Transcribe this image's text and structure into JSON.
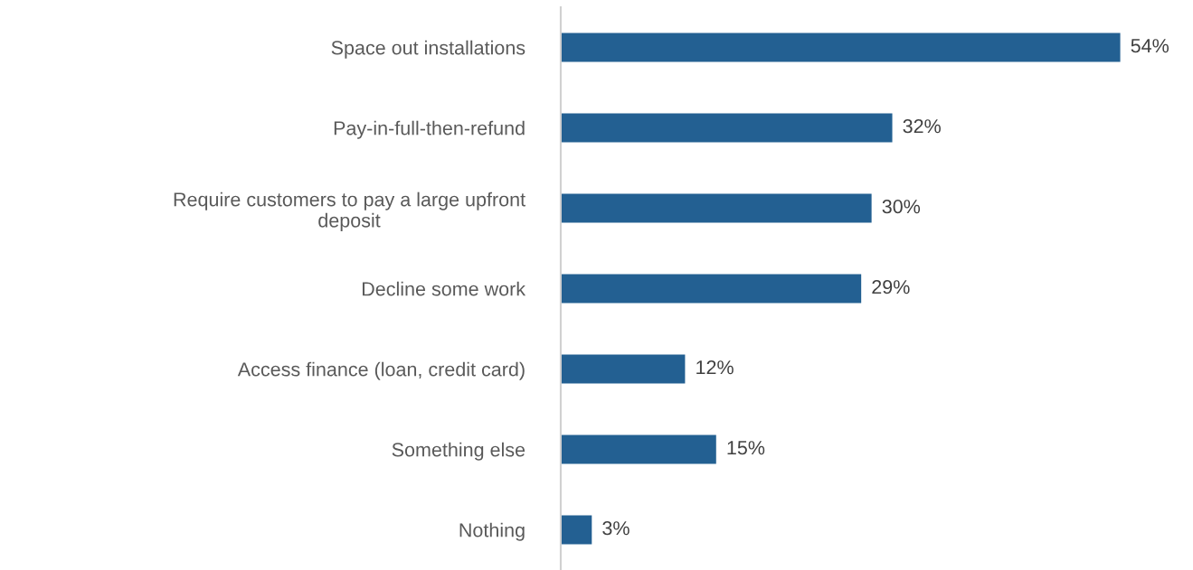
{
  "chart_data": {
    "type": "bar",
    "orientation": "horizontal",
    "categories": [
      "Space out installations",
      "Pay-in-full-then-refund",
      "Require customers to pay a large upfront\ndeposit",
      "Decline some work",
      "Access finance (loan, credit card)",
      "Something else",
      "Nothing"
    ],
    "values": [
      54,
      32,
      30,
      29,
      12,
      15,
      3
    ],
    "value_labels": [
      "54%",
      "32%",
      "30%",
      "29%",
      "12%",
      "15%",
      "3%"
    ],
    "color": "#236092",
    "grid": false,
    "legend": false
  }
}
